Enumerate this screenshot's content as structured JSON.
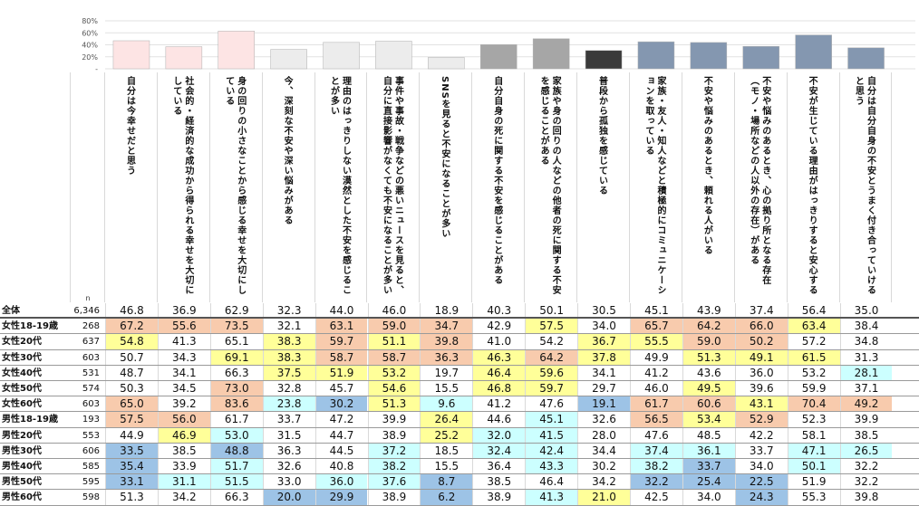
{
  "chart_data": {
    "type": "table",
    "y_axis_ticks": [
      "80%",
      "60%",
      "40%",
      "20%",
      "-"
    ],
    "ylim": [
      0,
      80
    ],
    "n_label": "n",
    "columns": [
      "自分は今幸せだと思う",
      "社会的・経済的な成功から得られる幸せを大切にしている",
      "身の回りの小さなことから感じる幸せを大切にしている",
      "今、深刻な不安や深い悩みがある",
      "理由のはっきりしない漠然とした不安を感じることが多い",
      "事件や事故・戦争などの悪いニュースを見ると、自分に直接影響がなくても不安になることが多い",
      "SNSを見ると不安になることが多い",
      "自分自身の死に関する不安を感じることがある",
      "家族や身の回りの人などの他者の死に関する不安を感じることがある",
      "普段から孤独を感じている",
      "家族・友人・知人などと積極的にコミュニケーションを取っている",
      "不安や悩みのあるとき、頼れる人がいる",
      "不安や悩みのあるとき、心の拠り所となる存在（モノ・場所などの人以外の存在）がある",
      "不安が生じている理由がはっきりすると安心する",
      "自分は自分自身の不安とうまく付き合っていけると思う"
    ],
    "bar_colors": [
      "#fde4e4",
      "#fde4e4",
      "#fde4e4",
      "#ececec",
      "#ececec",
      "#ececec",
      "#ececec",
      "#a6a6a6",
      "#a6a6a6",
      "#3a3a3a",
      "#8497b0",
      "#8497b0",
      "#8497b0",
      "#8497b0",
      "#8497b0"
    ],
    "highlight_colors": {
      "orange": "#f8cbad",
      "yellow": "#ffff99",
      "cyan": "#ccffff",
      "blue": "#9dc3e6"
    },
    "rows": [
      {
        "label": "全体",
        "n": "6,346",
        "values": [
          "46.8",
          "36.9",
          "62.9",
          "32.3",
          "44.0",
          "46.0",
          "18.9",
          "40.3",
          "50.1",
          "30.5",
          "45.1",
          "43.9",
          "37.4",
          "56.4",
          "35.0"
        ],
        "hl": [
          "",
          "",
          "",
          "",
          "",
          "",
          "",
          "",
          "",
          "",
          "",
          "",
          "",
          "",
          ""
        ]
      },
      {
        "label": "女性18-19歳",
        "n": "268",
        "values": [
          "67.2",
          "55.6",
          "73.5",
          "32.1",
          "63.1",
          "59.0",
          "34.7",
          "42.9",
          "57.5",
          "34.0",
          "65.7",
          "64.2",
          "66.0",
          "63.4",
          "38.4"
        ],
        "hl": [
          "orange",
          "orange",
          "orange",
          "",
          "orange",
          "orange",
          "orange",
          "",
          "yellow",
          "",
          "orange",
          "orange",
          "orange",
          "yellow",
          ""
        ]
      },
      {
        "label": "女性20代",
        "n": "637",
        "values": [
          "54.8",
          "41.3",
          "65.1",
          "38.3",
          "59.7",
          "51.1",
          "39.8",
          "41.0",
          "54.2",
          "36.7",
          "55.5",
          "59.0",
          "50.2",
          "57.2",
          "34.8"
        ],
        "hl": [
          "yellow",
          "",
          "",
          "yellow",
          "orange",
          "yellow",
          "orange",
          "",
          "",
          "yellow",
          "yellow",
          "orange",
          "orange",
          "",
          ""
        ]
      },
      {
        "label": "女性30代",
        "n": "603",
        "values": [
          "50.7",
          "34.3",
          "69.1",
          "38.3",
          "58.7",
          "58.7",
          "36.3",
          "46.3",
          "64.2",
          "37.8",
          "49.9",
          "51.3",
          "49.1",
          "61.5",
          "31.3"
        ],
        "hl": [
          "",
          "",
          "yellow",
          "yellow",
          "orange",
          "orange",
          "orange",
          "yellow",
          "orange",
          "yellow",
          "",
          "yellow",
          "yellow",
          "yellow",
          ""
        ]
      },
      {
        "label": "女性40代",
        "n": "531",
        "values": [
          "48.7",
          "34.1",
          "66.3",
          "37.5",
          "51.9",
          "53.2",
          "19.7",
          "46.4",
          "59.6",
          "34.1",
          "41.2",
          "43.6",
          "36.0",
          "53.2",
          "28.1"
        ],
        "hl": [
          "",
          "",
          "",
          "yellow",
          "yellow",
          "yellow",
          "",
          "yellow",
          "yellow",
          "",
          "",
          "",
          "",
          "",
          "cyan"
        ]
      },
      {
        "label": "女性50代",
        "n": "574",
        "values": [
          "50.3",
          "34.5",
          "73.0",
          "32.8",
          "45.7",
          "54.6",
          "15.5",
          "46.8",
          "59.7",
          "29.7",
          "46.0",
          "49.5",
          "39.6",
          "59.9",
          "37.1"
        ],
        "hl": [
          "",
          "",
          "orange",
          "",
          "",
          "yellow",
          "",
          "yellow",
          "yellow",
          "",
          "",
          "yellow",
          "",
          "",
          ""
        ]
      },
      {
        "label": "女性60代",
        "n": "603",
        "values": [
          "65.0",
          "39.2",
          "83.6",
          "23.8",
          "30.2",
          "51.3",
          "9.6",
          "41.2",
          "47.6",
          "19.1",
          "61.7",
          "60.6",
          "43.1",
          "70.4",
          "49.2"
        ],
        "hl": [
          "orange",
          "",
          "orange",
          "cyan",
          "blue",
          "yellow",
          "cyan",
          "",
          "",
          "blue",
          "orange",
          "orange",
          "yellow",
          "orange",
          "orange"
        ]
      },
      {
        "label": "男性18-19歳",
        "n": "193",
        "values": [
          "57.5",
          "56.0",
          "61.7",
          "33.7",
          "47.2",
          "39.9",
          "26.4",
          "44.6",
          "45.1",
          "32.6",
          "56.5",
          "53.4",
          "52.9",
          "52.3",
          "39.9"
        ],
        "hl": [
          "orange",
          "orange",
          "",
          "",
          "",
          "",
          "yellow",
          "",
          "cyan",
          "",
          "orange",
          "yellow",
          "orange",
          "",
          ""
        ]
      },
      {
        "label": "男性20代",
        "n": "553",
        "values": [
          "44.9",
          "46.9",
          "53.0",
          "31.5",
          "44.7",
          "38.9",
          "25.2",
          "32.0",
          "41.5",
          "28.0",
          "47.6",
          "48.5",
          "42.2",
          "58.1",
          "38.5"
        ],
        "hl": [
          "",
          "yellow",
          "cyan",
          "",
          "",
          "",
          "yellow",
          "cyan",
          "cyan",
          "",
          "",
          "",
          "",
          "",
          ""
        ]
      },
      {
        "label": "男性30代",
        "n": "606",
        "values": [
          "33.5",
          "38.5",
          "48.8",
          "36.3",
          "44.5",
          "37.2",
          "18.5",
          "32.4",
          "42.4",
          "34.4",
          "37.4",
          "36.1",
          "33.7",
          "47.1",
          "26.5"
        ],
        "hl": [
          "blue",
          "",
          "blue",
          "",
          "",
          "cyan",
          "",
          "cyan",
          "cyan",
          "",
          "cyan",
          "cyan",
          "",
          "cyan",
          "cyan"
        ]
      },
      {
        "label": "男性40代",
        "n": "585",
        "values": [
          "35.4",
          "33.9",
          "51.7",
          "32.6",
          "40.8",
          "38.2",
          "15.5",
          "36.4",
          "43.3",
          "30.2",
          "38.2",
          "33.7",
          "34.0",
          "50.1",
          "32.2"
        ],
        "hl": [
          "blue",
          "",
          "cyan",
          "",
          "",
          "cyan",
          "",
          "",
          "cyan",
          "",
          "cyan",
          "blue",
          "",
          "cyan",
          ""
        ]
      },
      {
        "label": "男性50代",
        "n": "595",
        "values": [
          "33.1",
          "31.1",
          "51.5",
          "33.0",
          "36.0",
          "37.6",
          "8.7",
          "38.5",
          "46.4",
          "34.2",
          "32.2",
          "25.4",
          "22.5",
          "51.9",
          "32.2"
        ],
        "hl": [
          "blue",
          "cyan",
          "cyan",
          "",
          "cyan",
          "cyan",
          "blue",
          "",
          "",
          "",
          "blue",
          "blue",
          "blue",
          "",
          ""
        ]
      },
      {
        "label": "男性60代",
        "n": "598",
        "values": [
          "51.3",
          "34.2",
          "66.3",
          "20.0",
          "29.9",
          "38.9",
          "6.2",
          "38.9",
          "41.3",
          "21.0",
          "42.5",
          "34.0",
          "24.3",
          "55.3",
          "39.8"
        ],
        "hl": [
          "",
          "",
          "",
          "blue",
          "blue",
          "",
          "blue",
          "",
          "cyan",
          "yellow",
          "",
          "",
          "blue",
          "",
          ""
        ]
      }
    ]
  }
}
